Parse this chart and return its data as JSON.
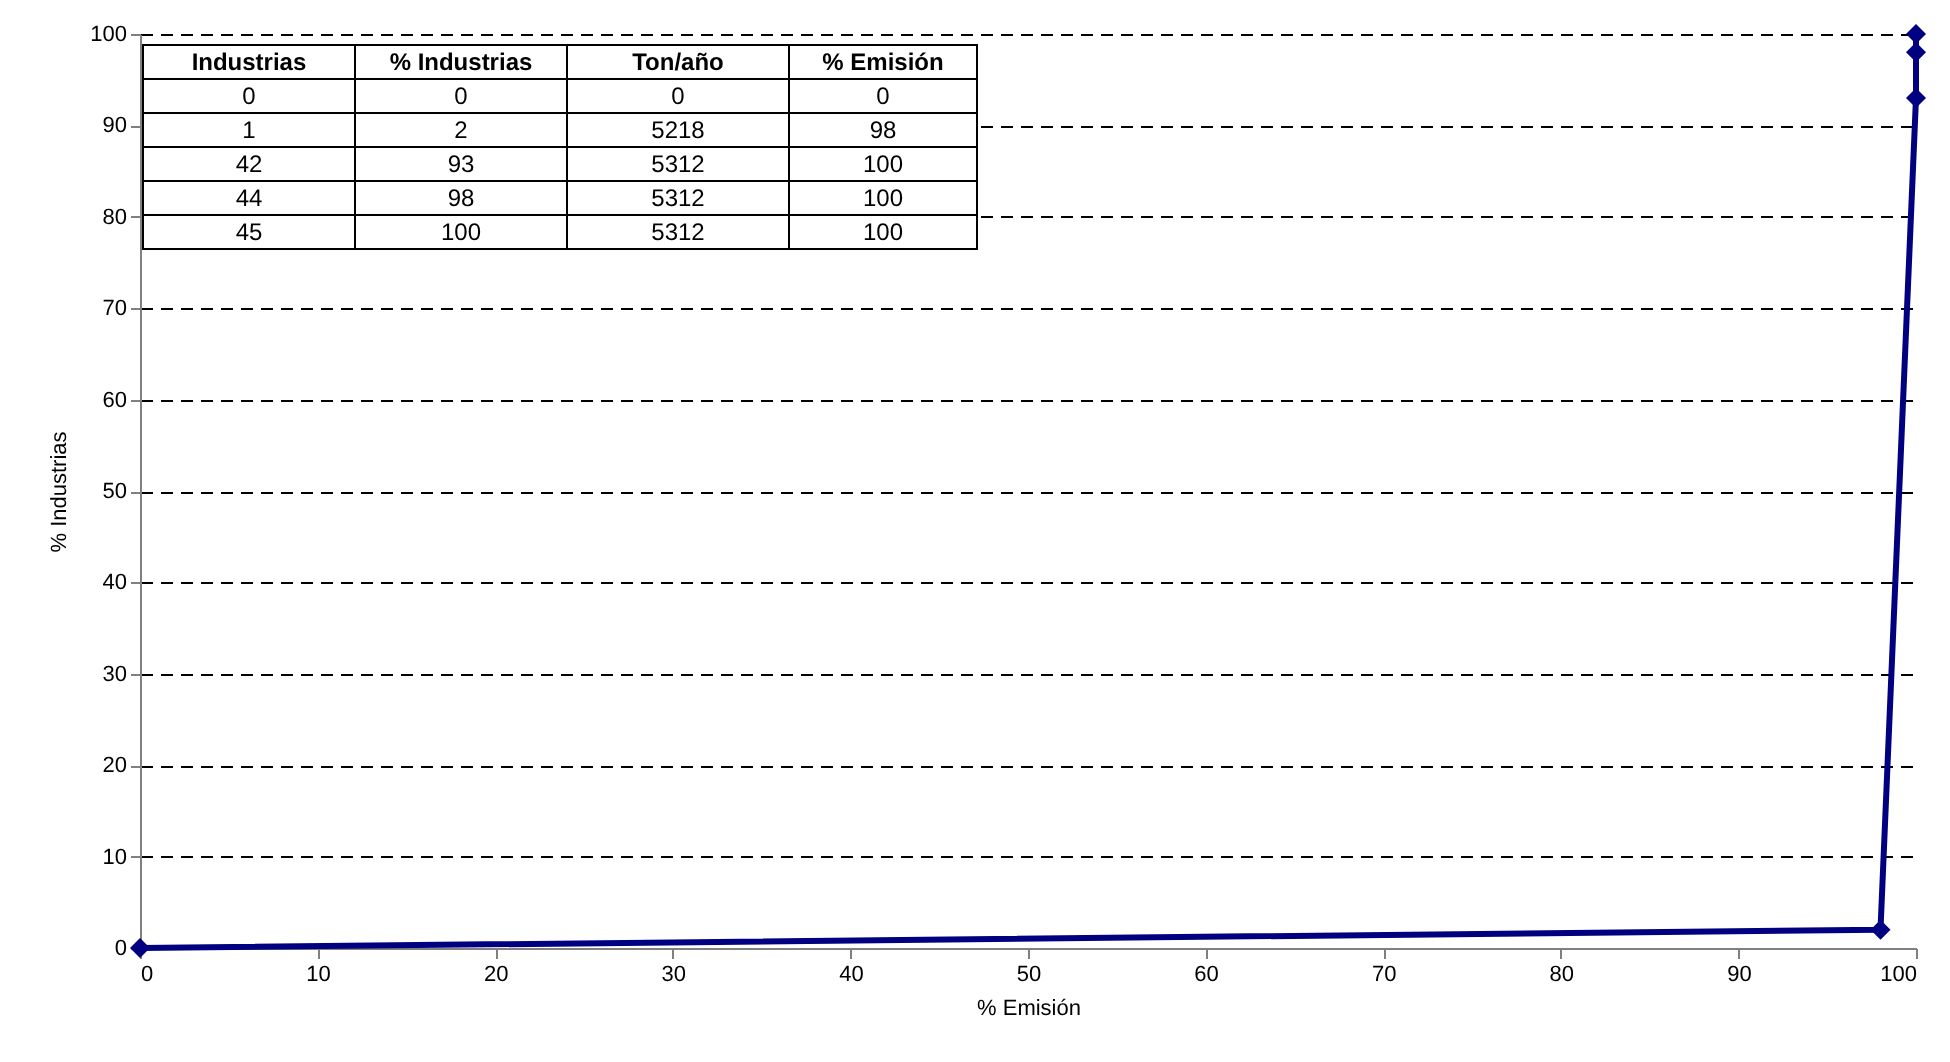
{
  "chart_data": {
    "type": "line",
    "xlabel": "% Emisión",
    "ylabel": "% Industrias",
    "x": [
      0,
      98,
      100,
      100,
      100
    ],
    "series": [
      {
        "color": "#000080",
        "values": [
          0,
          2,
          93,
          98,
          100
        ]
      }
    ],
    "xlim": [
      0,
      100
    ],
    "xticks": [
      0,
      10,
      20,
      30,
      40,
      50,
      60,
      70,
      80,
      90,
      100
    ],
    "ylim": [
      0,
      100
    ],
    "yticks": [
      0,
      10,
      20,
      30,
      40,
      50,
      60,
      70,
      80,
      90,
      100
    ],
    "grid": "y",
    "marker": "diamond",
    "line_style": "solid",
    "annotations": [
      "Industrias",
      "% Industrias",
      "Ton/año",
      "% Emisión",
      "0",
      "0",
      "0",
      "0",
      "1",
      "2",
      "5218",
      "98",
      "42",
      "93",
      "5312",
      "100",
      "44",
      "98",
      "5312",
      "100",
      "45",
      "100",
      "5312",
      "100"
    ]
  }
}
